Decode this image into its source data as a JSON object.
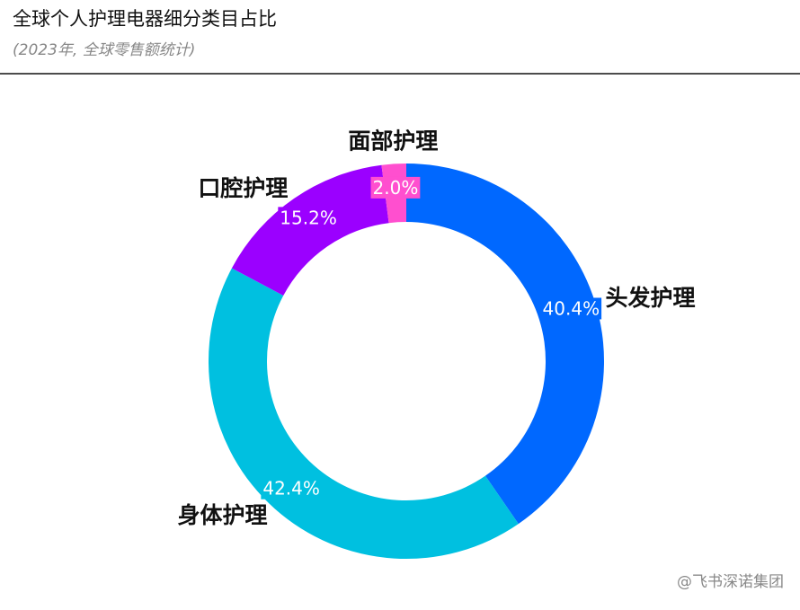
{
  "chart_data": {
    "type": "donut",
    "title": "全球个人护理电器细分类目占比",
    "subtitle": "(2023年, 全球零售额统计)",
    "categories": [
      "头发护理",
      "身体护理",
      "口腔护理",
      "面部护理"
    ],
    "values": [
      40.4,
      42.4,
      15.2,
      2.0
    ],
    "value_labels": [
      "40.4%",
      "42.4%",
      "15.2%",
      "2.0%"
    ],
    "colors": [
      "#0068ff",
      "#00c0e0",
      "#9b00ff",
      "#ff4fcf"
    ],
    "watermark": "@飞书深诺集团"
  }
}
